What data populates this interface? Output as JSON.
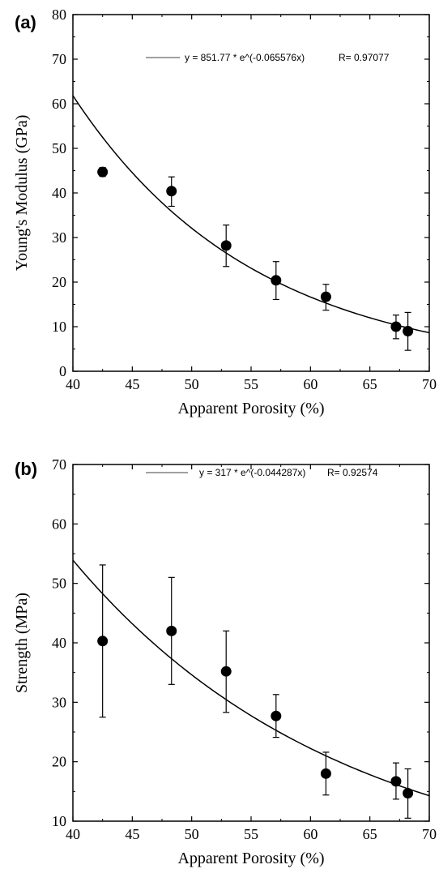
{
  "chart_data": [
    {
      "type": "scatter",
      "panel_label": "(a)",
      "xlabel": "Apparent Porosity (%)",
      "ylabel": "Young's Modulus (GPa)",
      "xlim": [
        40,
        70
      ],
      "ylim": [
        0,
        80
      ],
      "x_ticks": [
        40,
        45,
        50,
        55,
        60,
        65,
        70
      ],
      "y_ticks": [
        0,
        10,
        20,
        30,
        40,
        50,
        60,
        70,
        80
      ],
      "grid": false,
      "legend_position": "top",
      "fit_label": "y = 851.77 * e^(-0.065576x)",
      "r_label": "R= 0.97077",
      "fit": {
        "a": 851.77,
        "b": -0.065576
      },
      "points": [
        {
          "x": 42.5,
          "y": 44.7,
          "err_low": 1.0,
          "err_high": 1.0
        },
        {
          "x": 48.3,
          "y": 40.4,
          "err_low": 3.4,
          "err_high": 3.2
        },
        {
          "x": 52.9,
          "y": 28.2,
          "err_low": 4.7,
          "err_high": 4.6
        },
        {
          "x": 57.1,
          "y": 20.4,
          "err_low": 4.3,
          "err_high": 4.2
        },
        {
          "x": 61.3,
          "y": 16.7,
          "err_low": 3.0,
          "err_high": 2.8
        },
        {
          "x": 67.2,
          "y": 10.0,
          "err_low": 2.7,
          "err_high": 2.6
        },
        {
          "x": 68.2,
          "y": 9.0,
          "err_low": 4.3,
          "err_high": 4.2
        }
      ]
    },
    {
      "type": "scatter",
      "panel_label": "(b)",
      "xlabel": "Apparent Porosity (%)",
      "ylabel": "Strength (MPa)",
      "xlim": [
        40,
        70
      ],
      "ylim": [
        10,
        70
      ],
      "x_ticks": [
        40,
        45,
        50,
        55,
        60,
        65,
        70
      ],
      "y_ticks": [
        10,
        20,
        30,
        40,
        50,
        60,
        70
      ],
      "grid": false,
      "legend_position": "top",
      "fit_label": "y = 317 * e^(-0.044287x)",
      "r_label": "R= 0.92574",
      "fit": {
        "a": 317,
        "b": -0.044287
      },
      "points": [
        {
          "x": 42.5,
          "y": 40.3,
          "err_low": 12.8,
          "err_high": 12.8
        },
        {
          "x": 48.3,
          "y": 42.0,
          "err_low": 9.0,
          "err_high": 9.0
        },
        {
          "x": 52.9,
          "y": 35.2,
          "err_low": 6.9,
          "err_high": 6.8
        },
        {
          "x": 57.1,
          "y": 27.7,
          "err_low": 3.6,
          "err_high": 3.6
        },
        {
          "x": 61.3,
          "y": 18.0,
          "err_low": 3.6,
          "err_high": 3.6
        },
        {
          "x": 67.2,
          "y": 16.7,
          "err_low": 3.0,
          "err_high": 3.1
        },
        {
          "x": 68.2,
          "y": 14.7,
          "err_low": 4.2,
          "err_high": 4.1
        }
      ]
    }
  ]
}
